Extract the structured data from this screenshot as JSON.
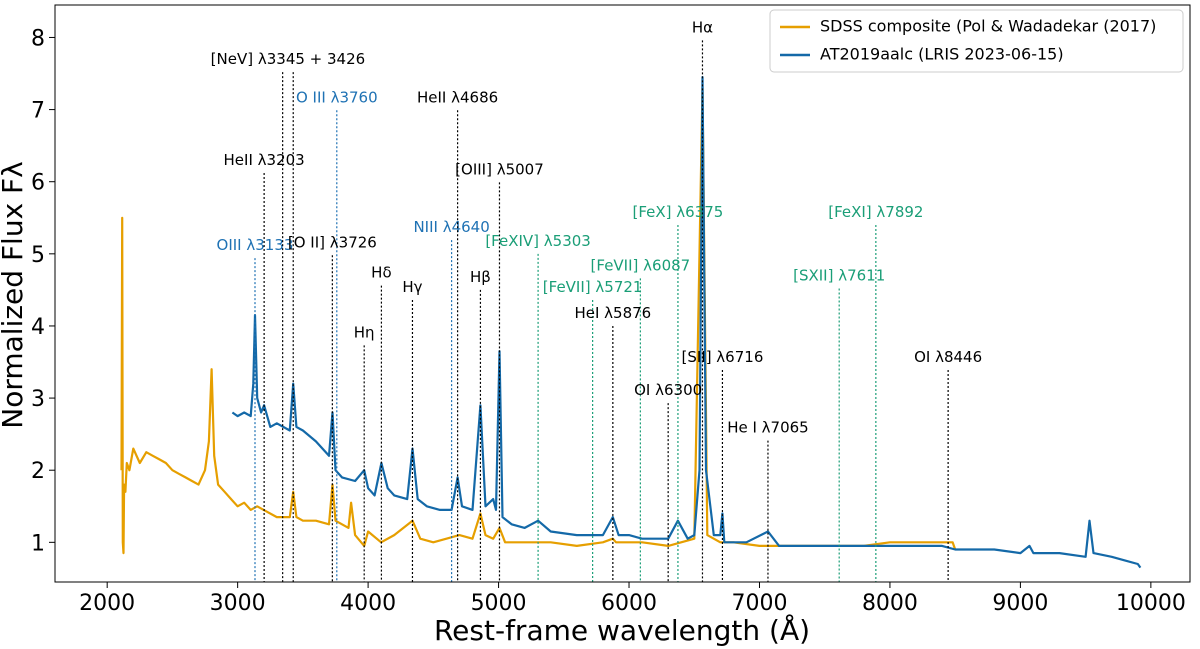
{
  "chart_data": {
    "type": "line",
    "xlabel": "Rest-frame wavelength (Å)",
    "ylabel": "Normalized Flux Fλ",
    "xlim": [
      1600,
      10300
    ],
    "ylim": [
      0.45,
      8.45
    ],
    "xticks": [
      2000,
      3000,
      4000,
      5000,
      6000,
      7000,
      8000,
      9000,
      10000
    ],
    "yticks": [
      1,
      2,
      3,
      4,
      5,
      6,
      7,
      8
    ],
    "grid": false,
    "legend": "upper right",
    "series": [
      {
        "name": "SDSS composite (Pol & Wadadekar (2017)",
        "color": "#e69f00",
        "x": [
          2110,
          2115,
          2120,
          2125,
          2130,
          2140,
          2150,
          2170,
          2200,
          2250,
          2300,
          2350,
          2400,
          2450,
          2500,
          2550,
          2600,
          2650,
          2700,
          2750,
          2780,
          2800,
          2820,
          2850,
          2900,
          2950,
          3000,
          3050,
          3100,
          3150,
          3200,
          3300,
          3400,
          3426,
          3450,
          3500,
          3600,
          3700,
          3727,
          3750,
          3800,
          3850,
          3870,
          3900,
          3970,
          4000,
          4100,
          4200,
          4340,
          4400,
          4500,
          4600,
          4700,
          4800,
          4861,
          4900,
          4959,
          5007,
          5050,
          5200,
          5400,
          5600,
          5800,
          5876,
          5900,
          6100,
          6300,
          6400,
          6500,
          6563,
          6600,
          6700,
          6800,
          7000,
          7200,
          7500,
          7800,
          8000,
          8200,
          8400,
          8480,
          8500
        ],
        "values": [
          2.0,
          5.5,
          1.0,
          0.85,
          1.8,
          1.7,
          2.1,
          2.0,
          2.3,
          2.1,
          2.25,
          2.2,
          2.15,
          2.1,
          2.0,
          1.95,
          1.9,
          1.85,
          1.8,
          2.0,
          2.4,
          3.4,
          2.2,
          1.8,
          1.7,
          1.6,
          1.5,
          1.55,
          1.45,
          1.5,
          1.45,
          1.35,
          1.35,
          1.7,
          1.35,
          1.3,
          1.3,
          1.25,
          1.8,
          1.3,
          1.25,
          1.2,
          1.55,
          1.1,
          0.95,
          1.15,
          1.0,
          1.1,
          1.3,
          1.05,
          1.0,
          1.05,
          1.1,
          1.05,
          1.4,
          1.1,
          1.05,
          1.2,
          1.0,
          1.0,
          1.0,
          0.95,
          1.0,
          1.05,
          1.0,
          1.0,
          0.95,
          1.0,
          1.05,
          7.3,
          1.1,
          1.0,
          1.0,
          0.95,
          0.95,
          0.95,
          0.95,
          1.0,
          1.0,
          1.0,
          1.0,
          0.9
        ]
      },
      {
        "name": "AT2019aalc (LRIS 2023-06-15)",
        "color": "#1469a8",
        "x": [
          2960,
          3000,
          3050,
          3100,
          3120,
          3133,
          3150,
          3180,
          3203,
          3250,
          3300,
          3400,
          3426,
          3450,
          3500,
          3600,
          3700,
          3727,
          3750,
          3800,
          3900,
          3970,
          4000,
          4050,
          4102,
          4150,
          4200,
          4300,
          4340,
          4380,
          4450,
          4550,
          4640,
          4686,
          4720,
          4800,
          4861,
          4900,
          4959,
          4980,
          5007,
          5030,
          5100,
          5200,
          5303,
          5400,
          5600,
          5800,
          5876,
          5920,
          6000,
          6100,
          6200,
          6300,
          6375,
          6450,
          6500,
          6540,
          6563,
          6590,
          6650,
          6700,
          6716,
          6730,
          6800,
          6900,
          7065,
          7150,
          7300,
          7500,
          7800,
          8000,
          8200,
          8400,
          8500,
          8600,
          8800,
          9000,
          9070,
          9100,
          9300,
          9500,
          9530,
          9560,
          9700,
          9800,
          9900,
          9920
        ],
        "values": [
          2.8,
          2.75,
          2.8,
          2.75,
          3.2,
          4.15,
          3.0,
          2.8,
          2.9,
          2.6,
          2.65,
          2.55,
          3.2,
          2.6,
          2.55,
          2.4,
          2.2,
          2.8,
          2.0,
          1.9,
          1.85,
          2.0,
          1.75,
          1.65,
          2.1,
          1.75,
          1.65,
          1.6,
          2.3,
          1.6,
          1.5,
          1.45,
          1.45,
          1.9,
          1.5,
          1.45,
          2.9,
          1.5,
          1.6,
          1.45,
          3.65,
          1.35,
          1.25,
          1.2,
          1.3,
          1.15,
          1.1,
          1.1,
          1.35,
          1.1,
          1.1,
          1.05,
          1.05,
          1.05,
          1.3,
          1.05,
          1.1,
          2.0,
          7.45,
          2.0,
          1.1,
          1.1,
          1.4,
          1.0,
          1.0,
          1.0,
          1.15,
          0.95,
          0.95,
          0.95,
          0.95,
          0.95,
          0.95,
          0.95,
          0.9,
          0.9,
          0.9,
          0.85,
          0.95,
          0.85,
          0.85,
          0.8,
          1.3,
          0.85,
          0.8,
          0.75,
          0.7,
          0.65
        ]
      }
    ],
    "annotations": [
      {
        "text": "OIII λ3133",
        "x": [
          3133
        ],
        "y": 4.94,
        "color": "#1f72b4"
      },
      {
        "text": "HeII λ3203",
        "x": [
          3203
        ],
        "y": 6.12,
        "color": "#000000"
      },
      {
        "text": "[NeV] λ3345 + 3426",
        "x": [
          3345,
          3426
        ],
        "y": 7.52,
        "color": "#000000"
      },
      {
        "text": "O III λ3760",
        "x": [
          3760
        ],
        "y": 6.99,
        "color": "#1f72b4"
      },
      {
        "text": "[O II] λ3726",
        "x": [
          3726
        ],
        "y": 4.98,
        "color": "#000000"
      },
      {
        "text": "Hη",
        "x": [
          3970
        ],
        "y": 3.73,
        "color": "#000000"
      },
      {
        "text": "Hδ",
        "x": [
          4102
        ],
        "y": 4.56,
        "color": "#000000"
      },
      {
        "text": "Hγ",
        "x": [
          4340
        ],
        "y": 4.36,
        "color": "#000000"
      },
      {
        "text": "NIII λ4640",
        "x": [
          4640
        ],
        "y": 5.19,
        "color": "#1f72b4"
      },
      {
        "text": "HeII λ4686",
        "x": [
          4686
        ],
        "y": 6.99,
        "color": "#000000"
      },
      {
        "text": "Hβ",
        "x": [
          4861
        ],
        "y": 4.5,
        "color": "#000000"
      },
      {
        "text": "[OIII] λ5007",
        "x": [
          5007
        ],
        "y": 5.99,
        "color": "#000000"
      },
      {
        "text": "[FeXIV] λ5303",
        "x": [
          5303
        ],
        "y": 5.0,
        "color": "#1a9e77"
      },
      {
        "text": "[FeVII] λ5721",
        "x": [
          5721
        ],
        "y": 4.36,
        "color": "#1a9e77"
      },
      {
        "text": "[FeVII] λ6087",
        "x": [
          6087
        ],
        "y": 4.66,
        "color": "#1a9e77"
      },
      {
        "text": "[FeX] λ6375",
        "x": [
          6375
        ],
        "y": 5.4,
        "color": "#1a9e77"
      },
      {
        "text": "HeI λ5876",
        "x": [
          5876
        ],
        "y": 4.0,
        "color": "#000000"
      },
      {
        "text": "OI λ6300",
        "x": [
          6300
        ],
        "y": 2.93,
        "color": "#000000"
      },
      {
        "text": "Hα",
        "x": [
          6563
        ],
        "y": 7.96,
        "color": "#000000"
      },
      {
        "text": "[SII] λ6716",
        "x": [
          6716
        ],
        "y": 3.39,
        "color": "#000000"
      },
      {
        "text": "He I λ7065",
        "x": [
          7065
        ],
        "y": 2.41,
        "color": "#000000"
      },
      {
        "text": "[SXII] λ7611",
        "x": [
          7611
        ],
        "y": 4.52,
        "color": "#1a9e77"
      },
      {
        "text": "[FeXI] λ7892",
        "x": [
          7892
        ],
        "y": 5.4,
        "color": "#1a9e77"
      },
      {
        "text": "OI λ8446",
        "x": [
          8446
        ],
        "y": 3.39,
        "color": "#000000"
      }
    ]
  }
}
